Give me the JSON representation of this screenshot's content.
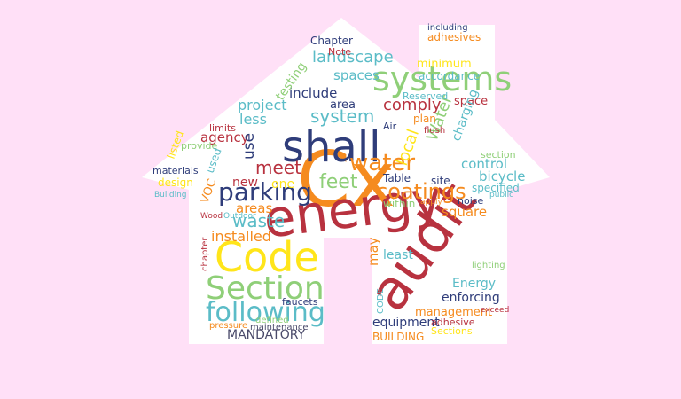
{
  "palette": {
    "background": "#ffe0f7",
    "shape": "#ffffff",
    "red": "#b8323f",
    "orange": "#f58b1f",
    "yellow": "#ffe51a",
    "green": "#8fcf78",
    "teal": "#5bbcc7",
    "navy": "#2f3d7a",
    "darkred": "#c62a3a",
    "gray": "#4a4a6a"
  },
  "shape_icon": "house-icon",
  "words": [
    {
      "text": "Cx",
      "color": "#f58b1f"
    },
    {
      "text": "energy",
      "color": "#b8323f"
    },
    {
      "text": "audit",
      "color": "#b8323f"
    },
    {
      "text": "shall",
      "color": "#2f3d7a"
    },
    {
      "text": "Code",
      "color": "#ffe51a"
    },
    {
      "text": "Section",
      "color": "#8fcf78"
    },
    {
      "text": "systems",
      "color": "#8fcf78"
    },
    {
      "text": "following",
      "color": "#5bbcc7"
    },
    {
      "text": "parking",
      "color": "#2f3d7a"
    },
    {
      "text": "water",
      "color": "#f58b1f"
    },
    {
      "text": "coatings",
      "color": "#f58b1f"
    },
    {
      "text": "waste",
      "color": "#5bbcc7"
    },
    {
      "text": "system",
      "color": "#5bbcc7"
    },
    {
      "text": "landscape",
      "color": "#5bbcc7"
    },
    {
      "text": "comply",
      "color": "#b8323f"
    },
    {
      "text": "meet",
      "color": "#b8323f"
    },
    {
      "text": "project",
      "color": "#5bbcc7"
    },
    {
      "text": "feet",
      "color": "#8fcf78"
    },
    {
      "text": "installed",
      "color": "#f58b1f"
    },
    {
      "text": "areas",
      "color": "#f58b1f"
    },
    {
      "text": "agency",
      "color": "#b8323f"
    },
    {
      "text": "less",
      "color": "#5bbcc7"
    },
    {
      "text": "use",
      "color": "#2f3d7a"
    },
    {
      "text": "local",
      "color": "#ffe51a"
    },
    {
      "text": "Water",
      "color": "#8fcf78"
    },
    {
      "text": "bicycle",
      "color": "#5bbcc7"
    },
    {
      "text": "control",
      "color": "#5bbcc7"
    },
    {
      "text": "square",
      "color": "#f58b1f"
    },
    {
      "text": "may",
      "color": "#f58b1f"
    },
    {
      "text": "least",
      "color": "#5bbcc7"
    },
    {
      "text": "Energy",
      "color": "#5bbcc7"
    },
    {
      "text": "enforcing",
      "color": "#2f3d7a"
    },
    {
      "text": "management",
      "color": "#f58b1f"
    },
    {
      "text": "equipment",
      "color": "#2f3d7a"
    },
    {
      "text": "MANDATORY",
      "color": "#4a4a6a"
    },
    {
      "text": "BUILDING",
      "color": "#f58b1f"
    },
    {
      "text": "Sections",
      "color": "#ffe51a"
    },
    {
      "text": "adhesive",
      "color": "#b8323f"
    },
    {
      "text": "include",
      "color": "#2f3d7a"
    },
    {
      "text": "Chapter",
      "color": "#2f3d7a"
    },
    {
      "text": "spaces",
      "color": "#5bbcc7"
    },
    {
      "text": "minimum",
      "color": "#ffe51a"
    },
    {
      "text": "accordance",
      "color": "#5bbcc7"
    },
    {
      "text": "adhesives",
      "color": "#f58b1f"
    },
    {
      "text": "including",
      "color": "#2f3d7a"
    },
    {
      "text": "testing",
      "color": "#8fcf78"
    },
    {
      "text": "area",
      "color": "#2f3d7a"
    },
    {
      "text": "space",
      "color": "#b8323f"
    },
    {
      "text": "plan",
      "color": "#f58b1f"
    },
    {
      "text": "charging",
      "color": "#5bbcc7"
    },
    {
      "text": "section",
      "color": "#8fcf78"
    },
    {
      "text": "specified",
      "color": "#5bbcc7"
    },
    {
      "text": "design",
      "color": "#ffe51a"
    },
    {
      "text": "materials",
      "color": "#2f3d7a"
    },
    {
      "text": "listed",
      "color": "#ffe51a"
    },
    {
      "text": "provide",
      "color": "#8fcf78"
    },
    {
      "text": "limits",
      "color": "#b8323f"
    },
    {
      "text": "new",
      "color": "#b8323f"
    },
    {
      "text": "one",
      "color": "#ffe51a"
    },
    {
      "text": "Table",
      "color": "#2f3d7a"
    },
    {
      "text": "site",
      "color": "#2f3d7a"
    },
    {
      "text": "within",
      "color": "#8fcf78"
    },
    {
      "text": "noise",
      "color": "#2f3d7a"
    },
    {
      "text": "VOC",
      "color": "#f58b1f"
    },
    {
      "text": "defined",
      "color": "#8fcf78"
    },
    {
      "text": "pressure",
      "color": "#f58b1f"
    },
    {
      "text": "maintenance",
      "color": "#4a4a6a"
    },
    {
      "text": "faucets",
      "color": "#2f3d7a"
    },
    {
      "text": "Note",
      "color": "#b8323f"
    },
    {
      "text": "Reserved",
      "color": "#5bbcc7"
    },
    {
      "text": "flush",
      "color": "#b8323f"
    },
    {
      "text": "Air",
      "color": "#2f3d7a"
    },
    {
      "text": "used",
      "color": "#5bbcc7"
    },
    {
      "text": "Building",
      "color": "#5bbcc7"
    },
    {
      "text": "CODE",
      "color": "#5bbcc7"
    },
    {
      "text": "chapter",
      "color": "#b8323f"
    },
    {
      "text": "Wood",
      "color": "#b8323f"
    },
    {
      "text": "Outdoor",
      "color": "#5bbcc7"
    },
    {
      "text": "lighting",
      "color": "#8fcf78"
    },
    {
      "text": "exceed",
      "color": "#b8323f"
    },
    {
      "text": "public",
      "color": "#5bbcc7"
    },
    {
      "text": "apply",
      "color": "#f58b1f"
    }
  ]
}
